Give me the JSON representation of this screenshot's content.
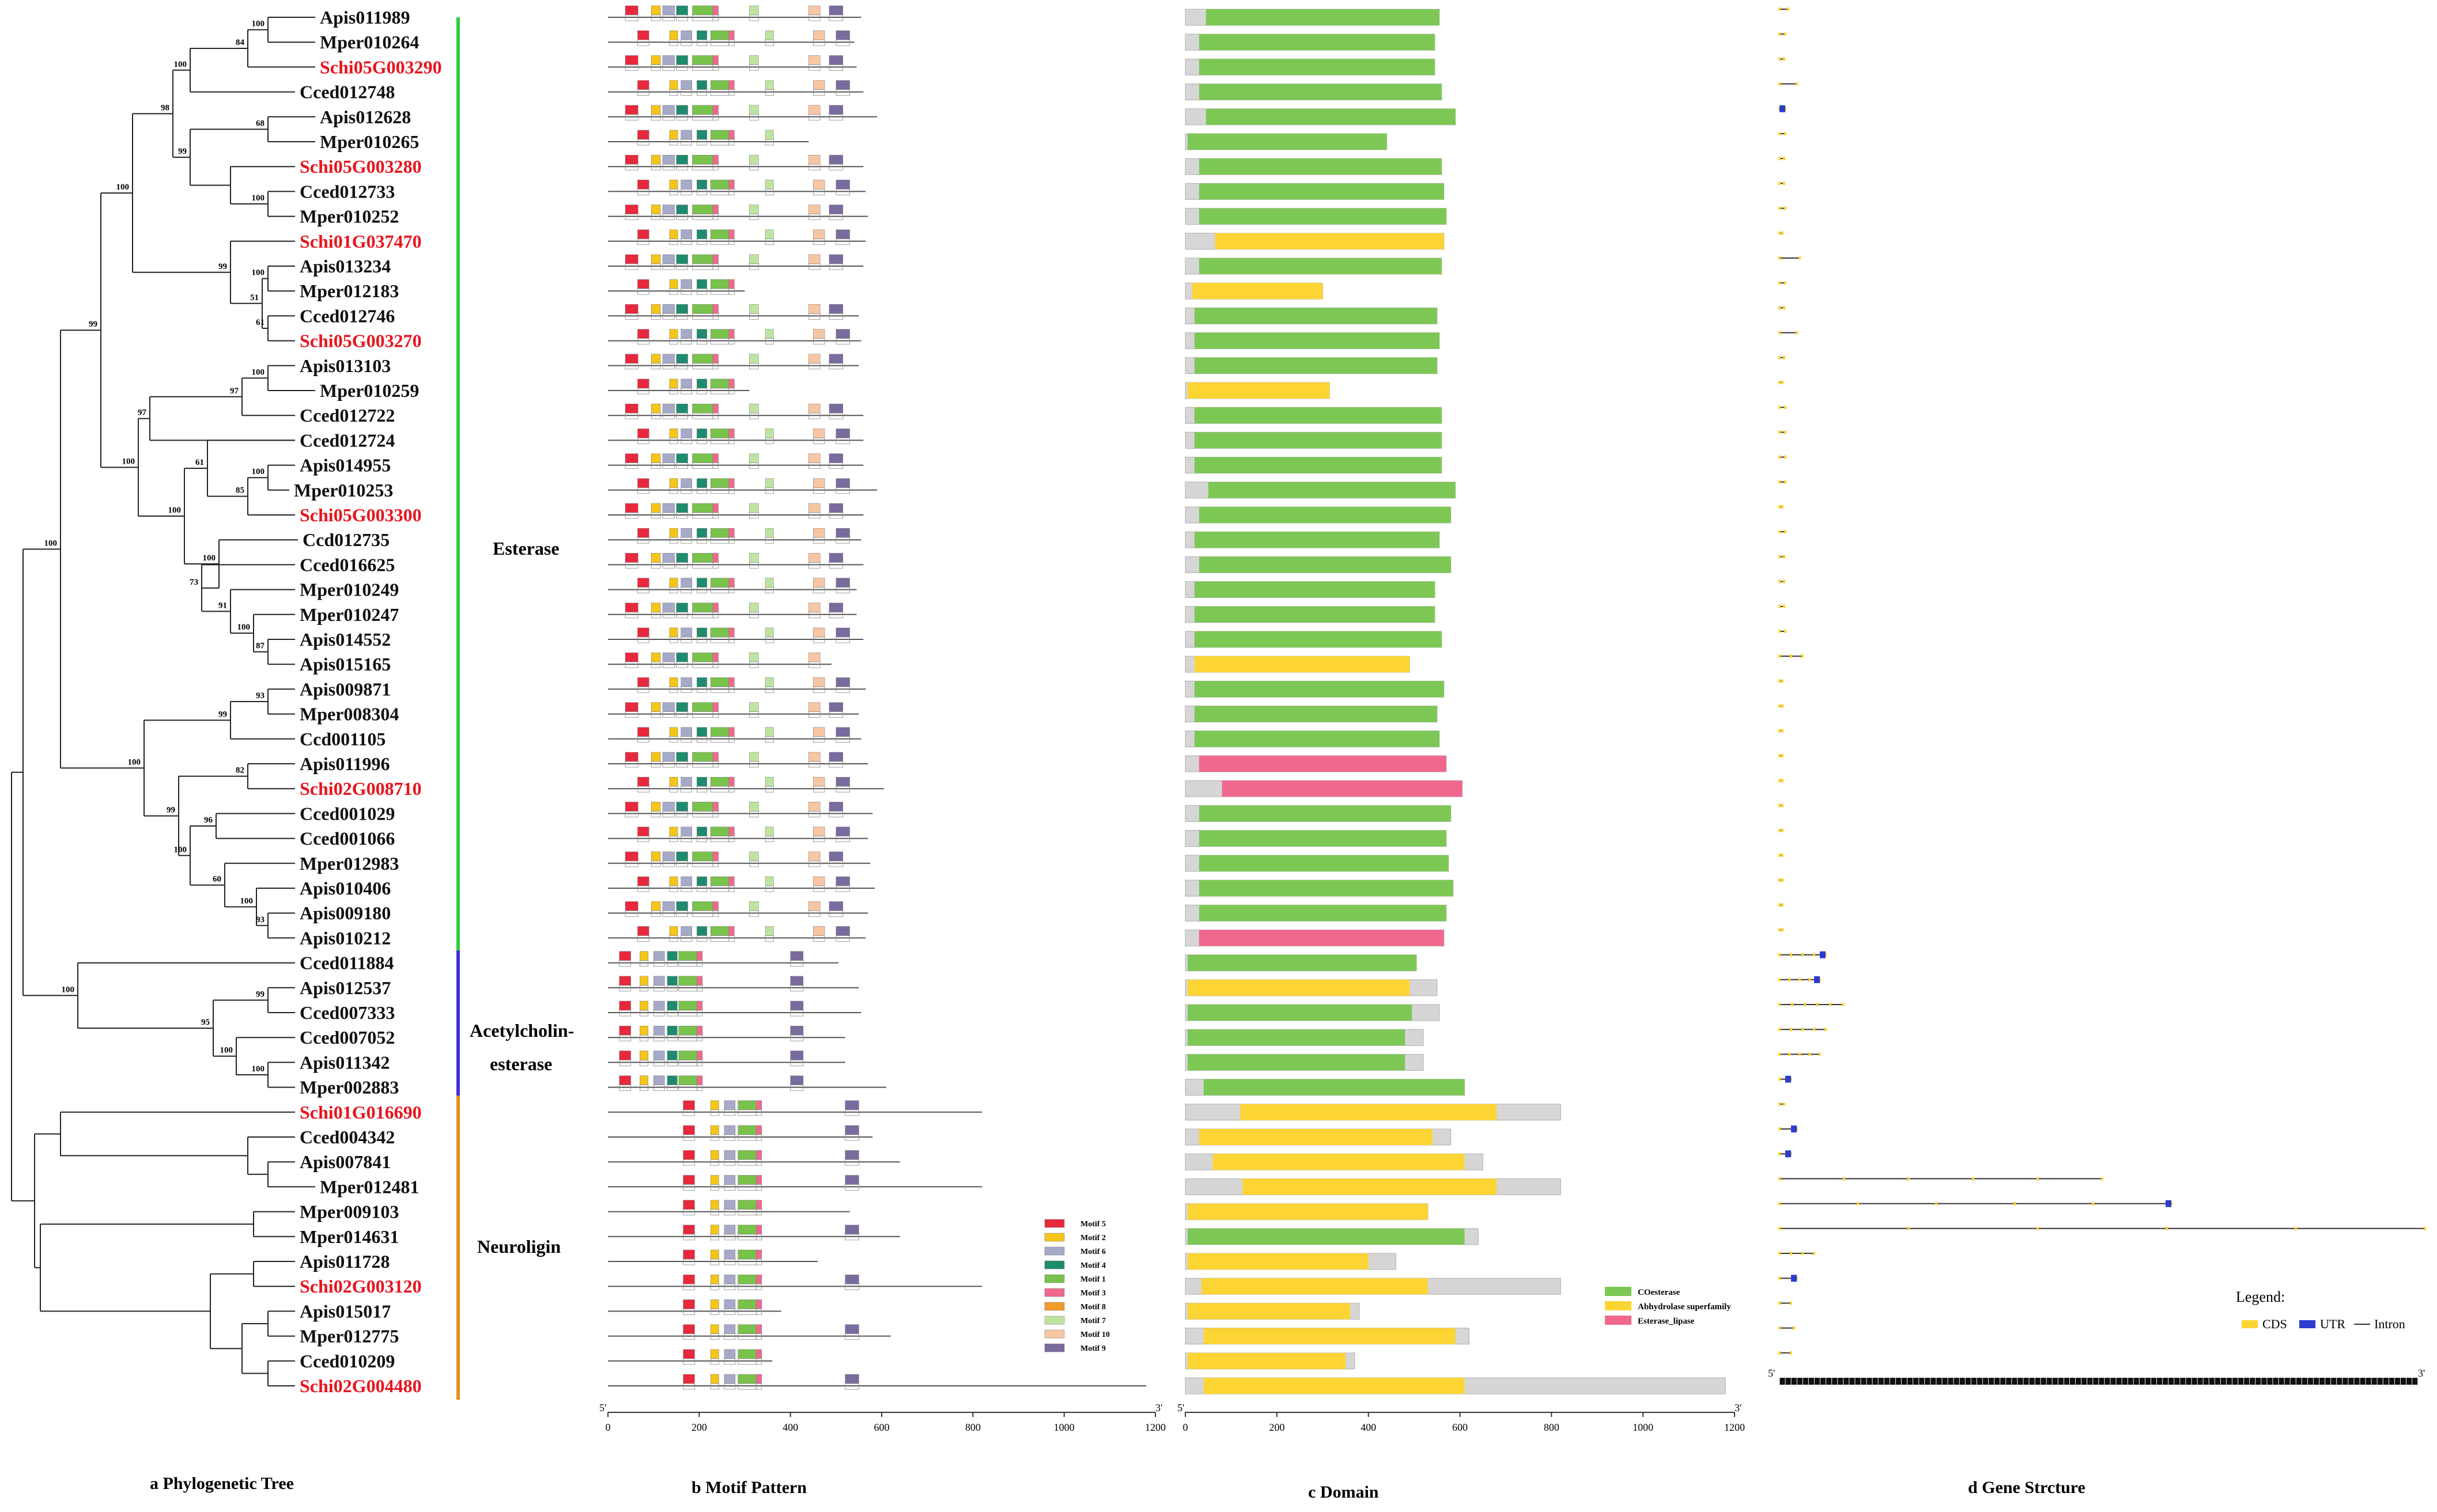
{
  "panels": {
    "a": "a Phylogenetic Tree",
    "b": "b Motif Pattern",
    "c": "c Domain",
    "d": "d Gene Strcture"
  },
  "families": [
    {
      "name": "Esterase",
      "color": "#2ecc40"
    },
    {
      "name": "Acetylcholin-",
      "name2": "esterase",
      "color": "#3f2fd6"
    },
    {
      "name": "Neuroligin",
      "color": "#e0901e"
    }
  ],
  "genes": [
    {
      "id": "Apis011989",
      "red": false
    },
    {
      "id": "Mper010264",
      "red": false
    },
    {
      "id": "Schi05G003290",
      "red": true
    },
    {
      "id": "Cced012748",
      "red": false
    },
    {
      "id": "Apis012628",
      "red": false
    },
    {
      "id": "Mper010265",
      "red": false
    },
    {
      "id": "Schi05G003280",
      "red": true
    },
    {
      "id": "Cced012733",
      "red": false
    },
    {
      "id": "Mper010252",
      "red": false
    },
    {
      "id": "Schi01G037470",
      "red": true
    },
    {
      "id": "Apis013234",
      "red": false
    },
    {
      "id": "Mper012183",
      "red": false
    },
    {
      "id": "Cced012746",
      "red": false
    },
    {
      "id": "Schi05G003270",
      "red": true
    },
    {
      "id": "Apis013103",
      "red": false
    },
    {
      "id": "Mper010259",
      "red": false
    },
    {
      "id": "Cced012722",
      "red": false
    },
    {
      "id": "Cced012724",
      "red": false
    },
    {
      "id": "Apis014955",
      "red": false
    },
    {
      "id": "Mper010253",
      "red": false
    },
    {
      "id": "Schi05G003300",
      "red": true
    },
    {
      "id": "Ccd012735",
      "red": false
    },
    {
      "id": "Cced016625",
      "red": false
    },
    {
      "id": "Mper010249",
      "red": false
    },
    {
      "id": "Mper010247",
      "red": false
    },
    {
      "id": "Apis014552",
      "red": false
    },
    {
      "id": "Apis015165",
      "red": false
    },
    {
      "id": "Apis009871",
      "red": false
    },
    {
      "id": "Mper008304",
      "red": false
    },
    {
      "id": "Ccd001105",
      "red": false
    },
    {
      "id": "Apis011996",
      "red": false
    },
    {
      "id": "Schi02G008710",
      "red": true
    },
    {
      "id": "Cced001029",
      "red": false
    },
    {
      "id": "Cced001066",
      "red": false
    },
    {
      "id": "Mper012983",
      "red": false
    },
    {
      "id": "Apis010406",
      "red": false
    },
    {
      "id": "Apis009180",
      "red": false
    },
    {
      "id": "Apis010212",
      "red": false
    },
    {
      "id": "Cced011884",
      "red": false
    },
    {
      "id": "Apis012537",
      "red": false
    },
    {
      "id": "Cced007333",
      "red": false
    },
    {
      "id": "Cced007052",
      "red": false
    },
    {
      "id": "Apis011342",
      "red": false
    },
    {
      "id": "Mper002883",
      "red": false
    },
    {
      "id": "Schi01G016690",
      "red": true
    },
    {
      "id": "Cced004342",
      "red": false
    },
    {
      "id": "Apis007841",
      "red": false
    },
    {
      "id": "Mper012481",
      "red": false
    },
    {
      "id": "Mper009103",
      "red": false
    },
    {
      "id": "Mper014631",
      "red": false
    },
    {
      "id": "Apis011728",
      "red": false
    },
    {
      "id": "Schi02G003120",
      "red": true
    },
    {
      "id": "Apis015017",
      "red": false
    },
    {
      "id": "Mper012775",
      "red": false
    },
    {
      "id": "Cced010209",
      "red": false
    },
    {
      "id": "Schi02G004480",
      "red": true
    }
  ],
  "bootstrap": [
    "100",
    "84",
    "100",
    "68",
    "100",
    "99",
    "98",
    "100",
    "61",
    "51",
    "99",
    "100",
    "100",
    "97",
    "97",
    "100",
    "85",
    "61",
    "87",
    "100",
    "91",
    "73",
    "100",
    "100",
    "100",
    "99",
    "93",
    "99",
    "82",
    "96",
    "93",
    "100",
    "60",
    "100",
    "99",
    "100",
    "100",
    "99",
    "100",
    "100",
    "95",
    "100"
  ],
  "motif_legend": [
    {
      "name": "Motif 5",
      "color": "#e8283c"
    },
    {
      "name": "Motif 2",
      "color": "#f5c518"
    },
    {
      "name": "Motif 6",
      "color": "#a7a9c9"
    },
    {
      "name": "Motif 4",
      "color": "#1e8a6e"
    },
    {
      "name": "Motif 1",
      "color": "#79c24b"
    },
    {
      "name": "Motif 3",
      "color": "#f0688e"
    },
    {
      "name": "Motif 8",
      "color": "#f39c2a"
    },
    {
      "name": "Motif 7",
      "color": "#bfe4a1"
    },
    {
      "name": "Motif 10",
      "color": "#f7c6a2"
    },
    {
      "name": "Motif 9",
      "color": "#7a6b9e"
    }
  ],
  "domain_legend": [
    {
      "name": "COesterase",
      "color": "#7dc855"
    },
    {
      "name": "Abhydrolase superfamily",
      "color": "#fcd535"
    },
    {
      "name": "Esterase_lipase",
      "color": "#f0688e"
    }
  ],
  "gene_legend": {
    "title": "Legend:",
    "items": [
      {
        "name": "CDS",
        "color": "#fcd535"
      },
      {
        "name": "UTR",
        "color": "#2d3bd0"
      },
      {
        "name": "Intron",
        "color": "#333333"
      }
    ]
  },
  "axis_b": {
    "ticks": [
      "0",
      "200",
      "400",
      "600",
      "800",
      "1000",
      "1200"
    ],
    "start": "5'",
    "end": "3'"
  },
  "axis_c": {
    "ticks": [
      "0",
      "200",
      "400",
      "600",
      "800",
      "1000",
      "1200"
    ],
    "start": "5'",
    "end": "3'"
  },
  "axis_d": {
    "start": "5'",
    "end": "3'"
  },
  "colors": {
    "red_label": "#e8141e",
    "grey_protein": "#d6d6d6"
  }
}
